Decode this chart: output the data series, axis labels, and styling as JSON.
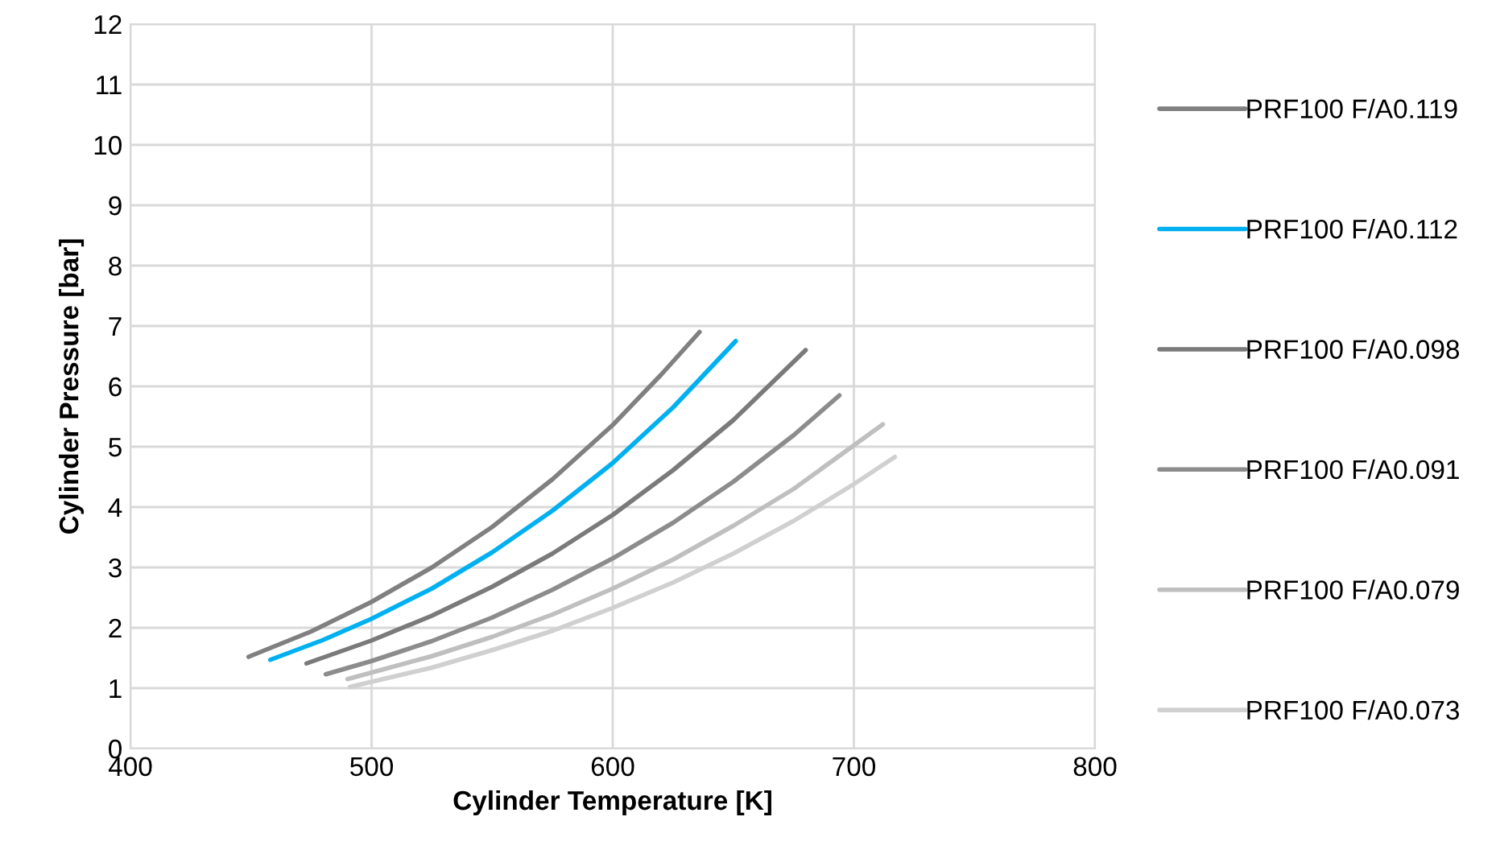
{
  "chart_data": {
    "type": "line",
    "xlabel": "Cylinder Temperature [K]",
    "ylabel": "Cylinder Pressure [bar]",
    "xlim": [
      400,
      800
    ],
    "xticks": [
      400,
      500,
      600,
      700,
      800
    ],
    "ylim": [
      0,
      12
    ],
    "yticks": [
      0,
      1,
      2,
      3,
      4,
      5,
      6,
      7,
      8,
      9,
      10,
      11,
      12
    ],
    "grid": true,
    "legend": "right",
    "marker": "none",
    "line_style": "solid",
    "series": [
      {
        "name": "PRF100 F/A0.119",
        "color": "#808080",
        "x": [
          449,
          475,
          500,
          525,
          550,
          575,
          600,
          620,
          636
        ],
        "values": [
          1.52,
          1.94,
          2.43,
          3.0,
          3.67,
          4.46,
          5.36,
          6.19,
          6.9
        ]
      },
      {
        "name": "PRF100 F/A0.112",
        "color": "#00b0f0",
        "x": [
          458,
          480,
          500,
          525,
          550,
          575,
          600,
          625,
          651
        ],
        "values": [
          1.47,
          1.8,
          2.15,
          2.65,
          3.25,
          3.94,
          4.73,
          5.65,
          6.75
        ]
      },
      {
        "name": "PRF100 F/A0.098",
        "color": "#7a7a7a",
        "x": [
          473,
          500,
          525,
          550,
          575,
          600,
          625,
          650,
          680
        ],
        "values": [
          1.41,
          1.79,
          2.2,
          2.68,
          3.23,
          3.87,
          4.61,
          5.44,
          6.6
        ]
      },
      {
        "name": "PRF100 F/A0.091",
        "color": "#8c8c8c",
        "x": [
          481,
          500,
          525,
          550,
          575,
          600,
          625,
          650,
          675,
          694
        ],
        "values": [
          1.23,
          1.45,
          1.78,
          2.17,
          2.63,
          3.15,
          3.74,
          4.42,
          5.19,
          5.85
        ]
      },
      {
        "name": "PRF100 F/A0.079",
        "color": "#bfbfbf",
        "x": [
          490,
          525,
          550,
          575,
          600,
          625,
          650,
          675,
          712
        ],
        "values": [
          1.15,
          1.53,
          1.85,
          2.22,
          2.65,
          3.13,
          3.69,
          4.3,
          5.37
        ]
      },
      {
        "name": "PRF100 F/A0.073",
        "color": "#d0d0d0",
        "x": [
          491,
          525,
          550,
          575,
          600,
          625,
          650,
          675,
          700,
          717
        ],
        "values": [
          1.02,
          1.34,
          1.63,
          1.95,
          2.33,
          2.75,
          3.23,
          3.77,
          4.38,
          4.83
        ]
      }
    ]
  }
}
